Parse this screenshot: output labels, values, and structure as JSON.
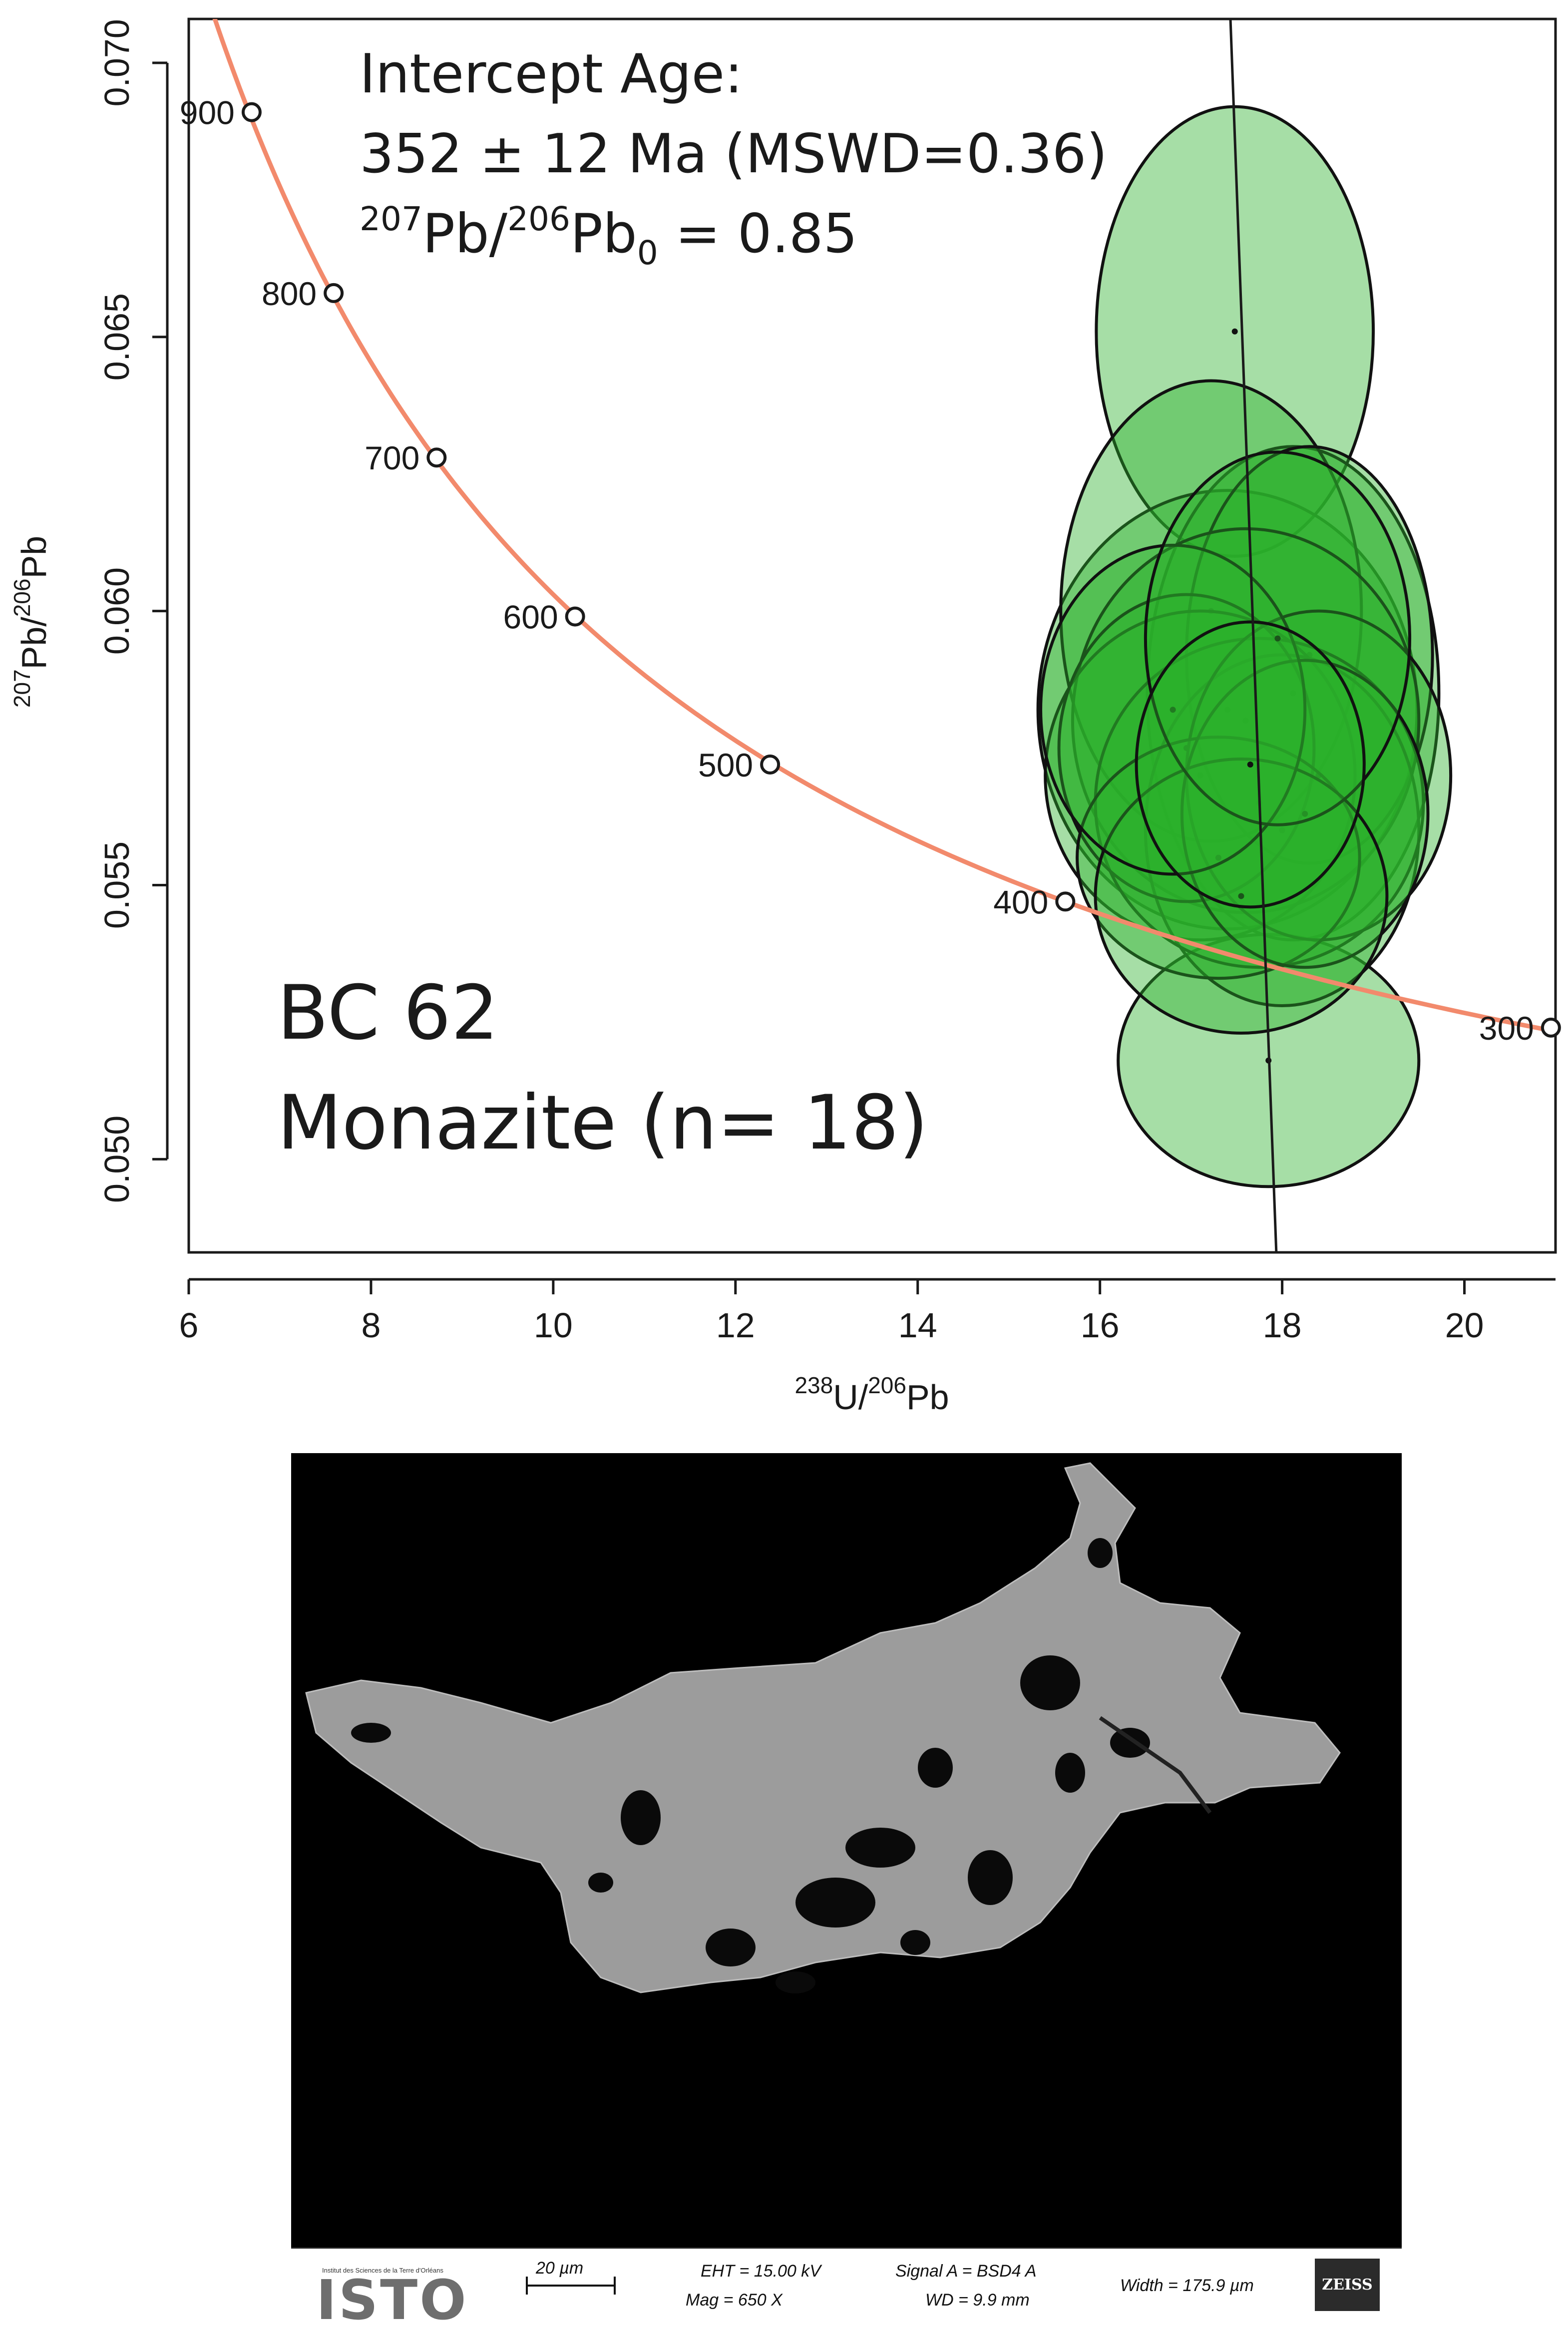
{
  "chart_data": {
    "type": "scatter",
    "title": "",
    "xlabel": {
      "base": "U/",
      "sup1": "238",
      "sup2": "206",
      "tail": "Pb"
    },
    "ylabel": {
      "sup1": "207",
      "mid": "Pb/",
      "sup2": "206",
      "tail": "Pb"
    },
    "xlim": [
      6,
      21
    ],
    "ylim": [
      0.0483,
      0.0708
    ],
    "x_ticks": [
      6,
      8,
      10,
      12,
      14,
      16,
      18,
      20
    ],
    "y_ticks": [
      0.05,
      0.055,
      0.06,
      0.065,
      0.07
    ],
    "y_tick_labels": [
      "0.050",
      "0.055",
      "0.060",
      "0.065",
      "0.070"
    ],
    "grid": false,
    "concordia": {
      "color": "#f28a6c",
      "age_markers": [
        {
          "age": "900",
          "x": 6.69,
          "y": 0.0691
        },
        {
          "age": "800",
          "x": 7.59,
          "y": 0.0658
        },
        {
          "age": "700",
          "x": 8.72,
          "y": 0.0628
        },
        {
          "age": "600",
          "x": 10.24,
          "y": 0.0599
        },
        {
          "age": "500",
          "x": 12.38,
          "y": 0.0572
        },
        {
          "age": "400",
          "x": 15.62,
          "y": 0.0547
        },
        {
          "age": "300",
          "x": 20.95,
          "y": 0.0524
        }
      ]
    },
    "discordia": {
      "color": "#1a1a1a",
      "y0": 0.85,
      "age_ma": 352
    },
    "error_ellipses": {
      "fill": "#2bb02b",
      "stroke": "#111111",
      "items": [
        {
          "x": 17.48,
          "y": 0.0651,
          "rx": 1.52,
          "ry": 0.0041
        },
        {
          "x": 17.85,
          "y": 0.0518,
          "rx": 1.65,
          "ry": 0.0023
        },
        {
          "x": 17.4,
          "y": 0.0582,
          "rx": 2.08,
          "ry": 0.004
        },
        {
          "x": 18.12,
          "y": 0.0585,
          "rx": 1.6,
          "ry": 0.0045
        },
        {
          "x": 17.22,
          "y": 0.06,
          "rx": 1.65,
          "ry": 0.0042
        },
        {
          "x": 18.3,
          "y": 0.0592,
          "rx": 1.35,
          "ry": 0.0038
        },
        {
          "x": 17.6,
          "y": 0.058,
          "rx": 1.9,
          "ry": 0.0035
        },
        {
          "x": 17.1,
          "y": 0.057,
          "rx": 1.7,
          "ry": 0.003
        },
        {
          "x": 18.0,
          "y": 0.056,
          "rx": 1.5,
          "ry": 0.0032
        },
        {
          "x": 17.75,
          "y": 0.0565,
          "rx": 1.8,
          "ry": 0.003
        },
        {
          "x": 16.95,
          "y": 0.0575,
          "rx": 1.4,
          "ry": 0.0028
        },
        {
          "x": 18.4,
          "y": 0.057,
          "rx": 1.45,
          "ry": 0.003
        },
        {
          "x": 17.3,
          "y": 0.0555,
          "rx": 1.55,
          "ry": 0.0022
        },
        {
          "x": 18.25,
          "y": 0.0563,
          "rx": 1.35,
          "ry": 0.0028
        },
        {
          "x": 17.55,
          "y": 0.0548,
          "rx": 1.6,
          "ry": 0.0025
        },
        {
          "x": 16.8,
          "y": 0.0582,
          "rx": 1.45,
          "ry": 0.003
        },
        {
          "x": 17.95,
          "y": 0.0595,
          "rx": 1.45,
          "ry": 0.0034
        },
        {
          "x": 17.65,
          "y": 0.0572,
          "rx": 1.25,
          "ry": 0.0026
        }
      ]
    },
    "annotations": {
      "intercept_title": "Intercept Age:",
      "intercept_value": "352 ± 12 Ma (MSWD=0.36)",
      "initial_ratio": {
        "sup1": "207",
        "mid": "Pb/",
        "sup2": "206",
        "base": "Pb",
        "sub": "0",
        "tail": " = 0.85"
      },
      "sample_name": "BC 62",
      "mineral": "Monazite (n= 18)"
    }
  },
  "sem_image": {
    "institute_line": "Institut des Sciences de la Terre d'Orléans",
    "logo_text": "ISTO",
    "scale_bar": "20 µm",
    "eht": "EHT = 15.00 kV",
    "mag": "Mag =   650 X",
    "signal": "Signal A = BSD4 A",
    "wd": "WD =  9.9 mm",
    "width": "Width = 175.9 µm",
    "brand": "ZEISS"
  }
}
